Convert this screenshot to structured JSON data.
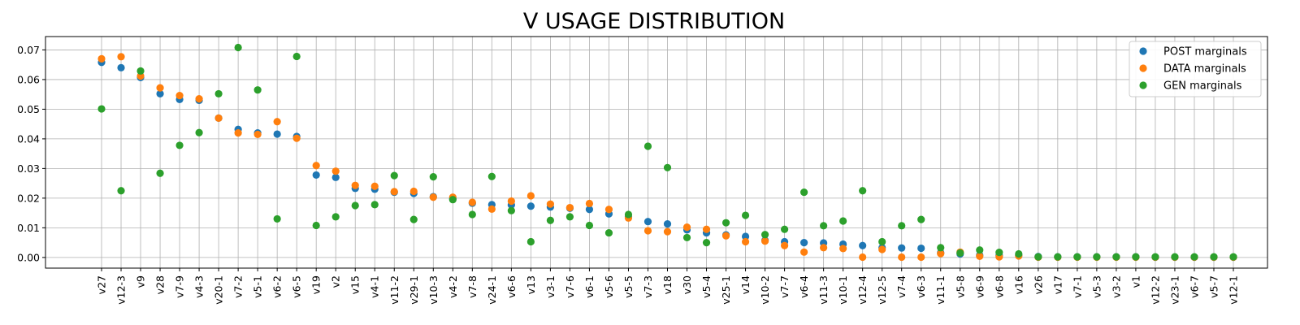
{
  "chart_data": {
    "type": "scatter",
    "title": "V USAGE DISTRIBUTION",
    "xlabel": "",
    "ylabel": "",
    "ylim": [
      -0.0036,
      0.0745
    ],
    "yticks": [
      "0.00",
      "0.01",
      "0.02",
      "0.03",
      "0.04",
      "0.05",
      "0.06",
      "0.07"
    ],
    "grid": true,
    "legend_position": "top-right",
    "categories": [
      "v27",
      "v12-3",
      "v9",
      "v28",
      "v7-9",
      "v4-3",
      "v20-1",
      "v7-2",
      "v5-1",
      "v6-2",
      "v6-5",
      "v19",
      "v2",
      "v15",
      "v4-1",
      "v11-2",
      "v29-1",
      "v10-3",
      "v4-2",
      "v7-8",
      "v24-1",
      "v6-6",
      "v13",
      "v3-1",
      "v7-6",
      "v6-1",
      "v5-6",
      "v5-5",
      "v7-3",
      "v18",
      "v30",
      "v5-4",
      "v25-1",
      "v14",
      "v10-2",
      "v7-7",
      "v6-4",
      "v11-3",
      "v10-1",
      "v12-4",
      "v12-5",
      "v7-4",
      "v6-3",
      "v11-1",
      "v5-8",
      "v6-9",
      "v6-8",
      "v16",
      "v26",
      "v17",
      "v7-1",
      "v5-3",
      "v3-2",
      "v1",
      "v12-2",
      "v23-1",
      "v6-7",
      "v5-7",
      "v12-1"
    ],
    "series": [
      {
        "name": "POST marginals",
        "color": "#1f77b4",
        "values": [
          0.0658,
          0.064,
          0.0607,
          0.0552,
          0.0533,
          0.053,
          0.047,
          0.0432,
          0.042,
          0.0416,
          0.0408,
          0.0278,
          0.027,
          0.0233,
          0.023,
          0.022,
          0.0216,
          0.0205,
          0.0198,
          0.0183,
          0.0178,
          0.0177,
          0.0173,
          0.017,
          0.0166,
          0.0162,
          0.0147,
          0.0137,
          0.0121,
          0.0113,
          0.0093,
          0.0083,
          0.0076,
          0.0071,
          0.0058,
          0.0053,
          0.005,
          0.0049,
          0.0045,
          0.004,
          0.0033,
          0.0032,
          0.0031,
          0.0016,
          0.0012,
          0.0008,
          0.0007,
          0.0008,
          0.0003,
          0.0002,
          0.0002,
          0.0002,
          0.0002,
          0.0002,
          0.0001,
          0.0001,
          0.0001,
          0.0001,
          0.0001
        ]
      },
      {
        "name": "DATA marginals",
        "color": "#ff7f0e",
        "values": [
          0.067,
          0.0677,
          0.0612,
          0.0572,
          0.0546,
          0.0535,
          0.047,
          0.042,
          0.0415,
          0.0458,
          0.0402,
          0.031,
          0.0291,
          0.0243,
          0.024,
          0.0222,
          0.0223,
          0.0203,
          0.0203,
          0.0186,
          0.0163,
          0.019,
          0.0208,
          0.018,
          0.0168,
          0.0182,
          0.0162,
          0.0133,
          0.009,
          0.0087,
          0.0102,
          0.0095,
          0.0073,
          0.0053,
          0.0055,
          0.004,
          0.0018,
          0.0033,
          0.003,
          0.0001,
          0.0027,
          0.0001,
          0.0001,
          0.0013,
          0.0018,
          0.0004,
          0.0002,
          0.0005,
          0.0001,
          0.0001,
          0.0001,
          0.0001,
          0.0001,
          0.0001,
          0.0001,
          0.0001,
          0.0001,
          0.0001,
          0.0001
        ]
      },
      {
        "name": "GEN marginals",
        "color": "#2ca02c",
        "values": [
          0.0501,
          0.0225,
          0.0629,
          0.0284,
          0.0378,
          0.0421,
          0.0552,
          0.0708,
          0.0565,
          0.013,
          0.0678,
          0.0108,
          0.0137,
          0.0175,
          0.0178,
          0.0276,
          0.0128,
          0.0272,
          0.0195,
          0.0145,
          0.0273,
          0.0158,
          0.0053,
          0.0125,
          0.0137,
          0.0108,
          0.0083,
          0.0145,
          0.0375,
          0.0303,
          0.0067,
          0.005,
          0.0117,
          0.0142,
          0.0077,
          0.0095,
          0.022,
          0.0107,
          0.0123,
          0.0225,
          0.0053,
          0.0107,
          0.0128,
          0.0033,
          0.0015,
          0.0025,
          0.0017,
          0.0012,
          0.0002,
          0.0002,
          0.0002,
          0.0002,
          0.0002,
          0.0002,
          0.0002,
          0.0002,
          0.0002,
          0.0002,
          0.0002
        ]
      }
    ]
  }
}
